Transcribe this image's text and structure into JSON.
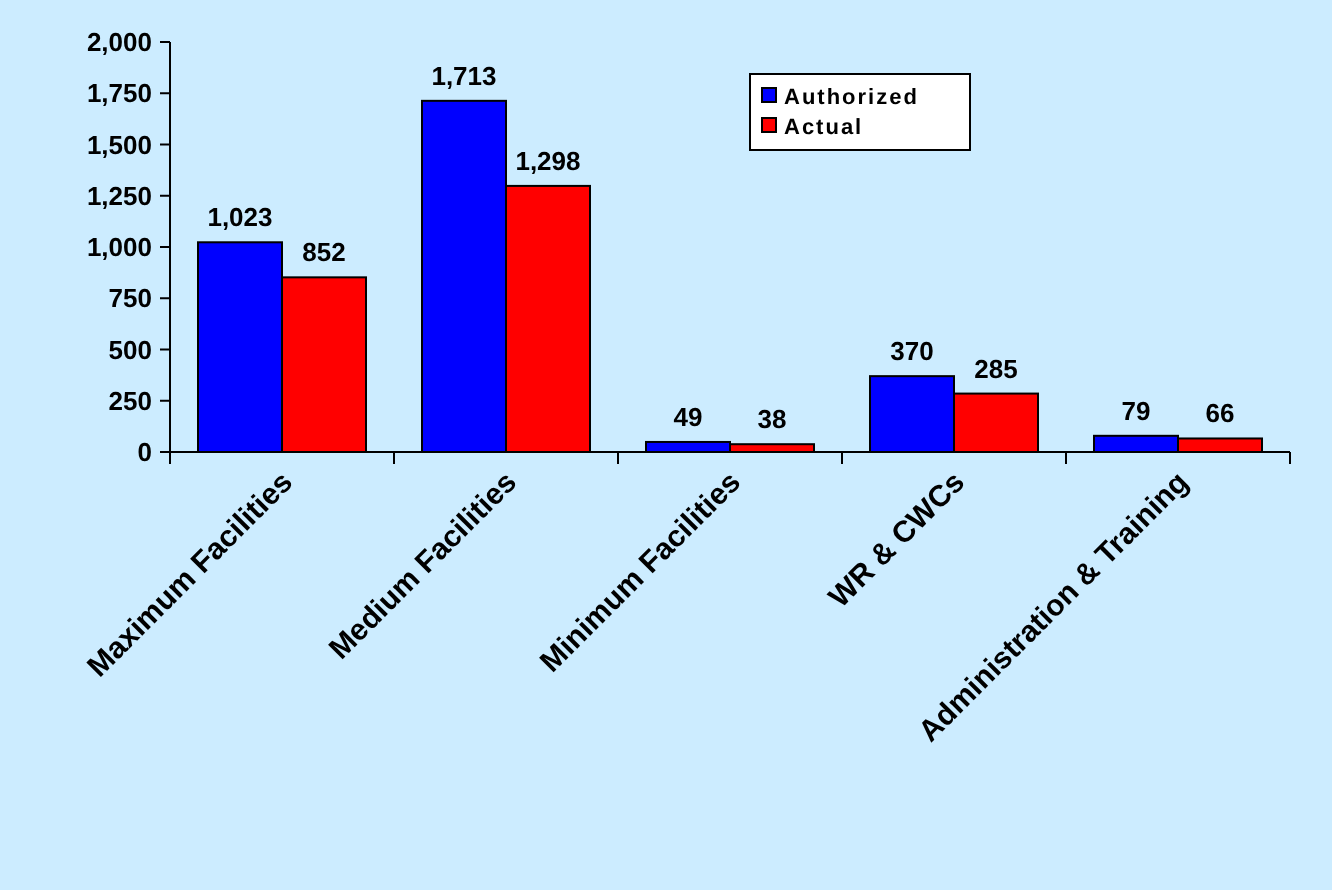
{
  "chart_data": {
    "type": "bar",
    "categories": [
      "Maximum Facilities",
      "Medium Facilities",
      "Minimum Facilities",
      "WR & CWCs",
      "Administration & Training"
    ],
    "series": [
      {
        "name": "Authorized",
        "color": "#0000ff",
        "values": [
          1023,
          1713,
          49,
          370,
          79
        ],
        "value_labels": [
          "1,023",
          "1,713",
          "49",
          "370",
          "79"
        ]
      },
      {
        "name": "Actual",
        "color": "#ff0000",
        "values": [
          852,
          1298,
          38,
          285,
          66
        ],
        "value_labels": [
          "852",
          "1,298",
          "38",
          "285",
          "66"
        ]
      }
    ],
    "ylim": [
      0,
      2000
    ],
    "yticks": [
      {
        "value": 0,
        "label": "0"
      },
      {
        "value": 250,
        "label": "250"
      },
      {
        "value": 500,
        "label": "500"
      },
      {
        "value": 750,
        "label": "750"
      },
      {
        "value": 1000,
        "label": "1,000"
      },
      {
        "value": 1250,
        "label": "1,250"
      },
      {
        "value": 1500,
        "label": "1,500"
      },
      {
        "value": 1750,
        "label": "1,750"
      },
      {
        "value": 2000,
        "label": "2,000"
      }
    ],
    "legend": "top right",
    "grid": false
  }
}
